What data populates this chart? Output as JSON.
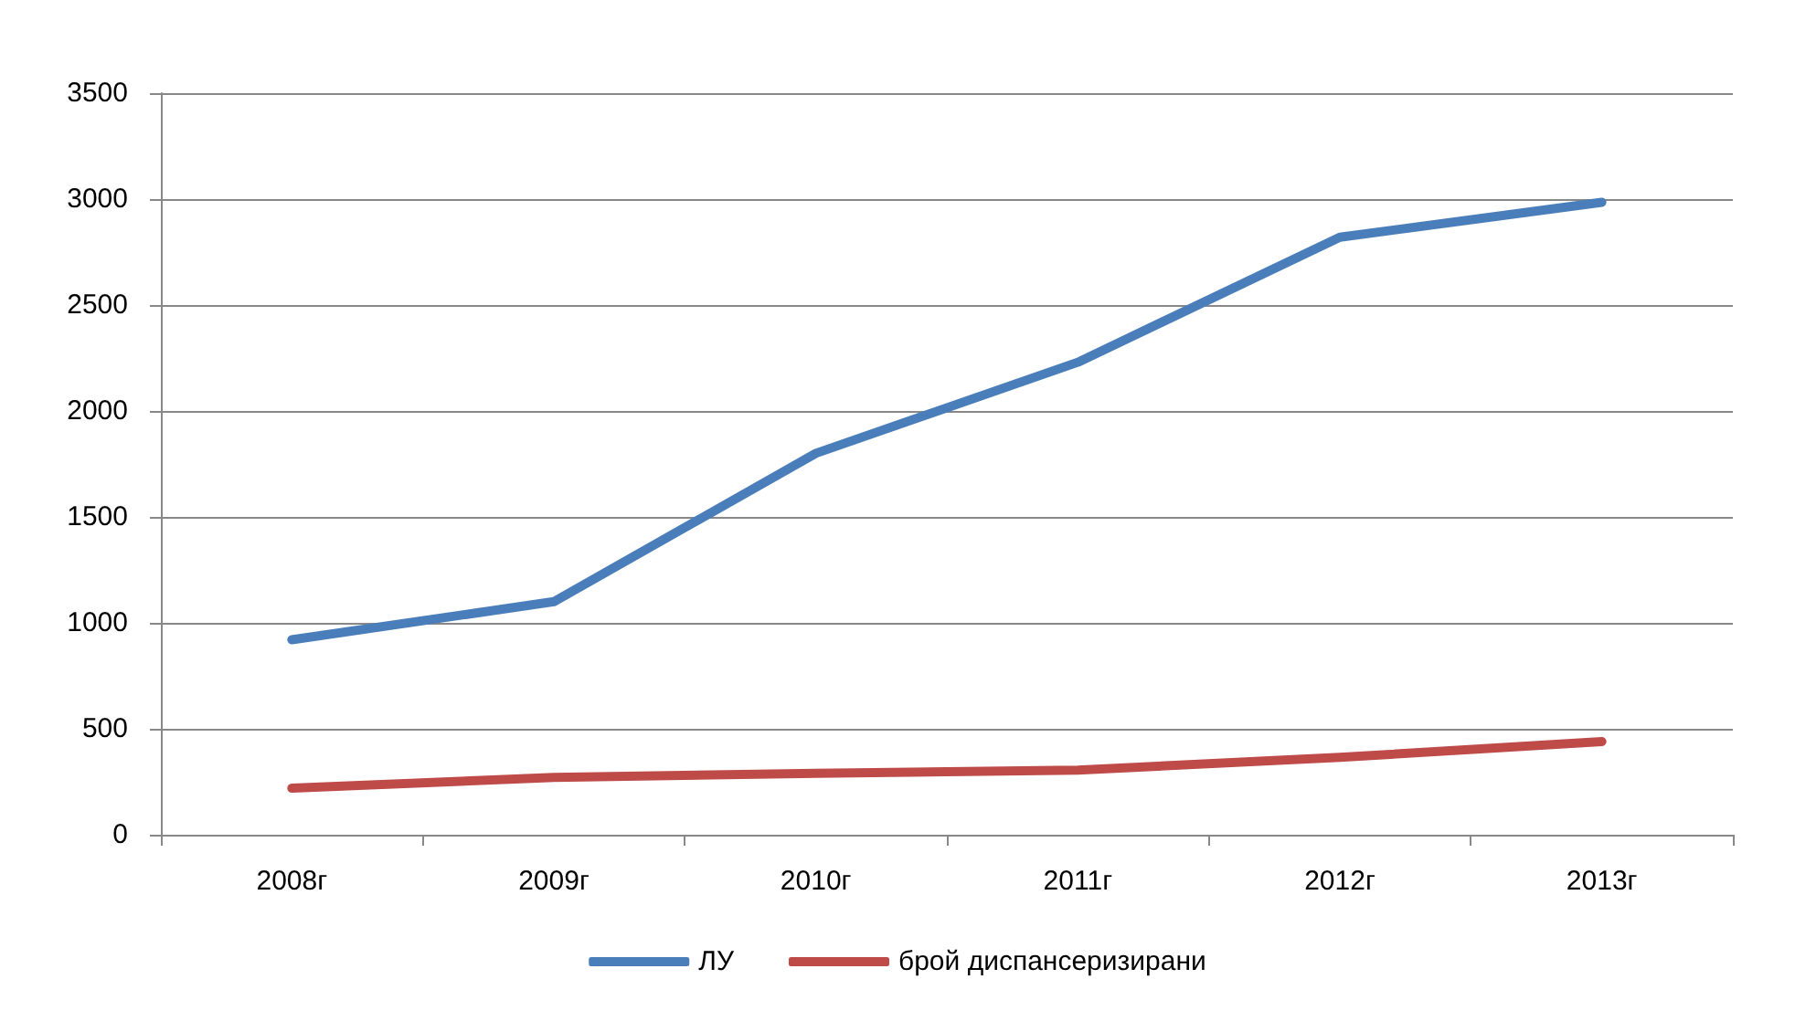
{
  "chart_data": {
    "type": "line",
    "categories": [
      "2008г",
      "2009г",
      "2010г",
      "2011г",
      "2012г",
      "2013г"
    ],
    "series": [
      {
        "name": "ЛУ",
        "color": "#4a7ebb",
        "values": [
          920,
          1100,
          1800,
          2230,
          2820,
          2985
        ]
      },
      {
        "name": "брой диспансеризирани",
        "color": "#be4b48",
        "values": [
          220,
          270,
          290,
          305,
          365,
          440
        ]
      }
    ],
    "ylim": [
      0,
      3500
    ],
    "yticks": [
      0,
      500,
      1000,
      1500,
      2000,
      2500,
      3000,
      3500
    ],
    "grid": "y",
    "legend": "bottom",
    "marker": "none",
    "line_style": "solid"
  }
}
